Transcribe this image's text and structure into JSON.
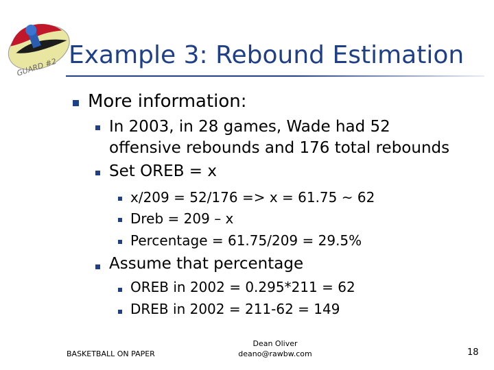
{
  "slide": {
    "title": "Example 3:  Rebound Estimation",
    "logo_text": "GUARD #2",
    "bullets": [
      {
        "text": "More information:"
      },
      {
        "text": "In 2003, in 28 games, Wade had 52"
      },
      {
        "text": "offensive rebounds and 176 total rebounds"
      },
      {
        "text": "Set OREB = x"
      },
      {
        "text": "x/209 = 52/176 => x = 61.75 ~ 62"
      },
      {
        "text": "Dreb = 209 – x"
      },
      {
        "text": "Percentage = 61.75/209 = 29.5%"
      },
      {
        "text": "Assume that percentage"
      },
      {
        "text": "OREB in 2002 = 0.295*211 = 62"
      },
      {
        "text": "DREB in 2002 = 211-62 = 149"
      }
    ]
  },
  "footer": {
    "left": "BASKETBALL ON PAPER",
    "author": "Dean Oliver",
    "email": "deano@rawbw.com",
    "page_number": "18"
  },
  "colors": {
    "title": "#1f3f86",
    "bullet": "#1f3f86"
  }
}
